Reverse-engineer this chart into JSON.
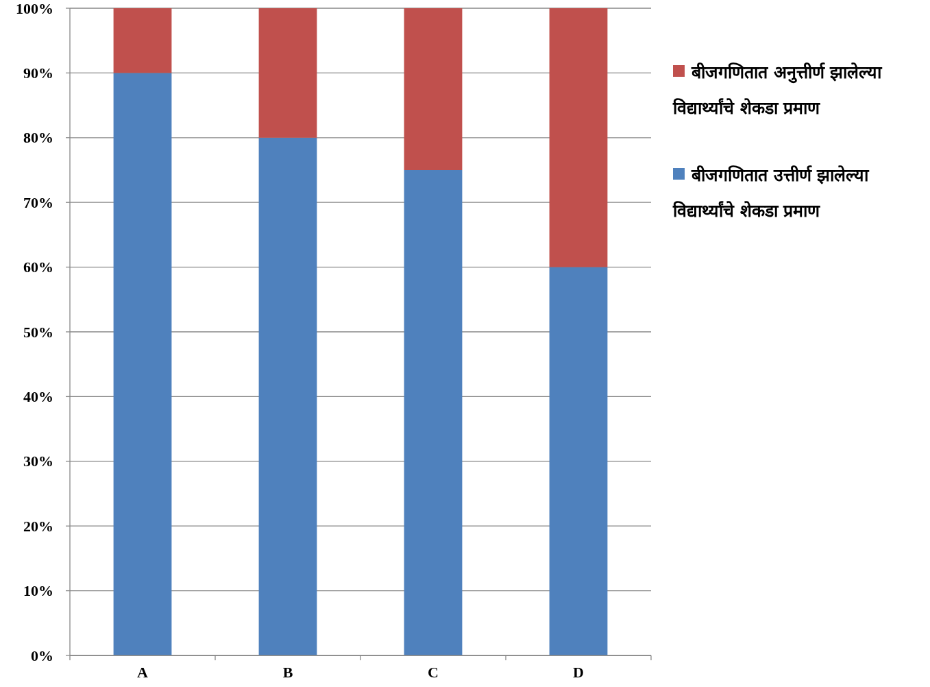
{
  "chart_data": {
    "type": "bar",
    "stacked": true,
    "categories": [
      "A",
      "B",
      "C",
      "D"
    ],
    "series": [
      {
        "name": "बीजगणितात उत्तीर्ण झालेल्या विद्यार्थ्यांचे शेकडा प्रमाण",
        "color": "#4f81bd",
        "values": [
          90,
          80,
          75,
          60
        ]
      },
      {
        "name": "बीजगणितात अनुत्तीर्ण झालेल्या विद्यार्थ्यांचे शेकडा प्रमाण",
        "color": "#c0504d",
        "values": [
          10,
          20,
          25,
          40
        ]
      }
    ],
    "ylim": [
      0,
      100
    ],
    "yticks": [
      {
        "value": 0,
        "label": "0%"
      },
      {
        "value": 10,
        "label": "10%"
      },
      {
        "value": 20,
        "label": "20%"
      },
      {
        "value": 30,
        "label": "30%"
      },
      {
        "value": 40,
        "label": "40%"
      },
      {
        "value": 50,
        "label": "50%"
      },
      {
        "value": 60,
        "label": "60%"
      },
      {
        "value": 70,
        "label": "70%"
      },
      {
        "value": 80,
        "label": "80%"
      },
      {
        "value": 90,
        "label": "90%"
      },
      {
        "value": 100,
        "label": "100%"
      }
    ],
    "grid": "y",
    "legend": "right"
  }
}
